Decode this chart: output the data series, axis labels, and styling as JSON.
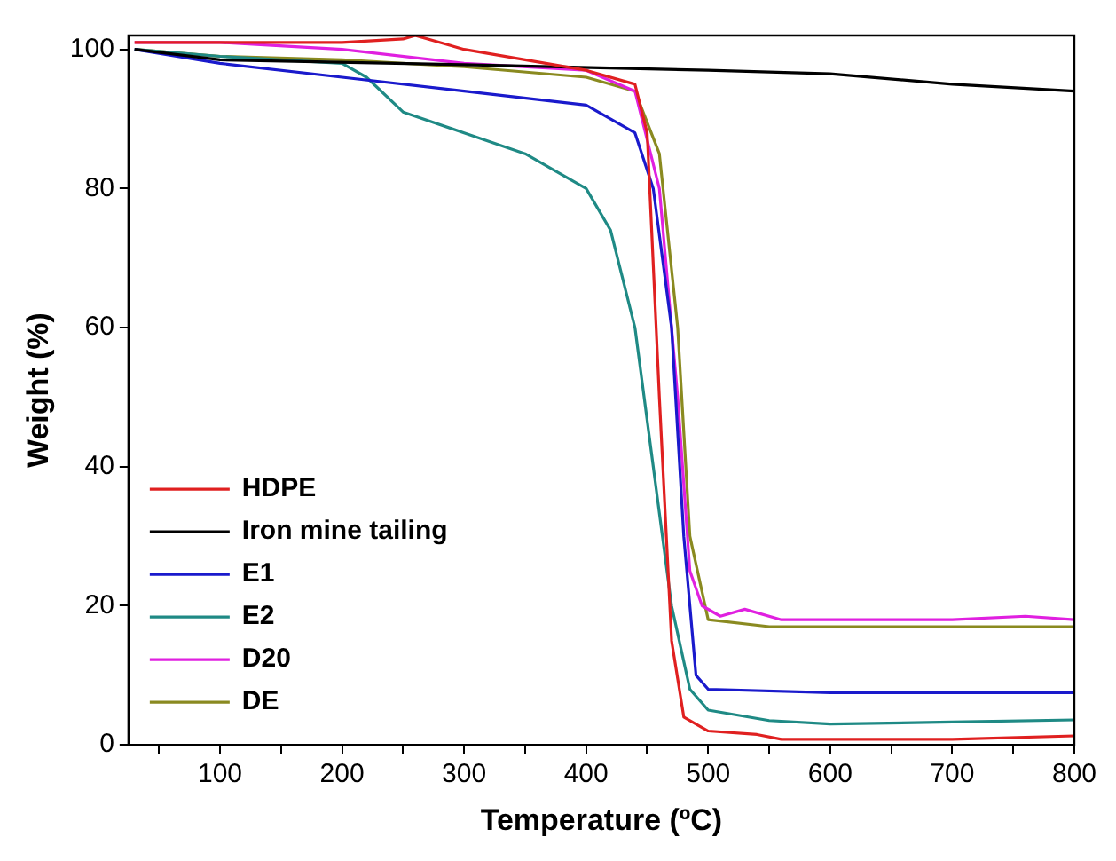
{
  "chart_data": {
    "type": "line",
    "xlabel": "Temperature (ºC)",
    "ylabel": "Weight (%)",
    "xlim": [
      25,
      800
    ],
    "ylim": [
      0,
      102
    ],
    "xticks": [
      {
        "value": 50,
        "label": null
      },
      100,
      {
        "value": 150,
        "label": null
      },
      200,
      {
        "value": 250,
        "label": null
      },
      300,
      {
        "value": 350,
        "label": null
      },
      400,
      {
        "value": 450,
        "label": null
      },
      500,
      {
        "value": 550,
        "label": null
      },
      600,
      {
        "value": 650,
        "label": null
      },
      700,
      {
        "value": 750,
        "label": null
      },
      800
    ],
    "yticks": [
      0,
      20,
      40,
      60,
      80,
      100
    ],
    "grid": false,
    "legend": "bottom left",
    "marker": "none",
    "line_style": "solid",
    "series": [
      {
        "name": "HDPE",
        "color": "#e02020",
        "x": [
          30,
          100,
          200,
          250,
          260,
          300,
          400,
          440,
          450,
          460,
          470,
          480,
          500,
          540,
          560,
          700,
          800
        ],
        "values": [
          101,
          101,
          101,
          101.5,
          102,
          100,
          97,
          95,
          88,
          50,
          15,
          4,
          2,
          1.5,
          0.8,
          0.8,
          1.3
        ]
      },
      {
        "name": "Iron mine tailing",
        "color": "#000000",
        "x": [
          30,
          100,
          300,
          500,
          600,
          700,
          800
        ],
        "values": [
          100,
          98.5,
          97.8,
          97,
          96.5,
          95,
          94
        ]
      },
      {
        "name": "E1",
        "color": "#1a1acc",
        "x": [
          30,
          100,
          200,
          300,
          400,
          440,
          455,
          470,
          480,
          490,
          500,
          600,
          800
        ],
        "values": [
          100,
          98,
          96,
          94,
          92,
          88,
          80,
          60,
          30,
          10,
          8,
          7.5,
          7.5
        ]
      },
      {
        "name": "E2",
        "color": "#1f8a85",
        "x": [
          30,
          100,
          200,
          220,
          250,
          300,
          350,
          400,
          420,
          440,
          455,
          470,
          485,
          500,
          550,
          600,
          700,
          800
        ],
        "values": [
          100,
          99,
          98,
          96,
          91,
          88,
          85,
          80,
          74,
          60,
          40,
          20,
          8,
          5,
          3.5,
          3,
          3.3,
          3.6
        ]
      },
      {
        "name": "D20",
        "color": "#e020e0",
        "x": [
          30,
          100,
          200,
          300,
          400,
          440,
          460,
          475,
          485,
          495,
          510,
          530,
          560,
          700,
          760,
          800
        ],
        "values": [
          101,
          101,
          100,
          98,
          97,
          94,
          80,
          50,
          25,
          20,
          18.5,
          19.5,
          18,
          18,
          18.5,
          18
        ]
      },
      {
        "name": "DE",
        "color": "#8a8a20",
        "x": [
          30,
          100,
          200,
          300,
          400,
          440,
          460,
          475,
          485,
          500,
          550,
          800
        ],
        "values": [
          100,
          99,
          98.5,
          97.5,
          96,
          94,
          85,
          60,
          30,
          18,
          17,
          17
        ]
      }
    ]
  }
}
